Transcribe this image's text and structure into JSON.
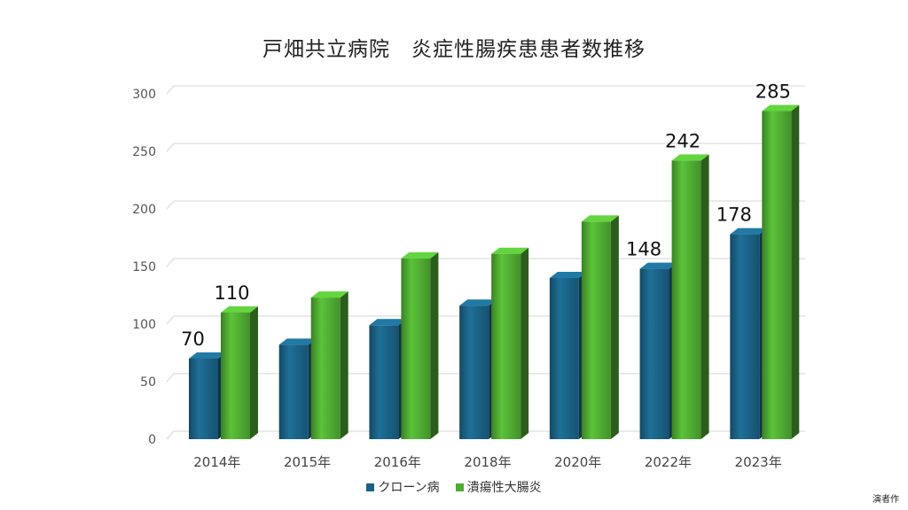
{
  "chart_data": {
    "type": "bar",
    "title": "戸畑共立病院　炎症性腸疾患患者数推移",
    "categories": [
      "2014年",
      "2015年",
      "2016年",
      "2018年",
      "2020年",
      "2022年",
      "2023年"
    ],
    "series": [
      {
        "name": "クローン病",
        "values": [
          70,
          82,
          99,
          116,
          140,
          148,
          178
        ],
        "color": "#1a6184",
        "data_labels": [
          "70",
          "",
          "",
          "",
          "",
          "148",
          "178"
        ]
      },
      {
        "name": "潰瘍性大腸炎",
        "values": [
          110,
          123,
          157,
          161,
          189,
          242,
          285
        ],
        "color": "#4faa32",
        "data_labels": [
          "110",
          "",
          "",
          "",
          "",
          "242",
          "285"
        ]
      }
    ],
    "yticks": [
      "0",
      "50",
      "100",
      "150",
      "200",
      "250",
      "300"
    ],
    "ylim": [
      0,
      300
    ],
    "grid": true,
    "legend": "bottom"
  },
  "credit": "演者作"
}
